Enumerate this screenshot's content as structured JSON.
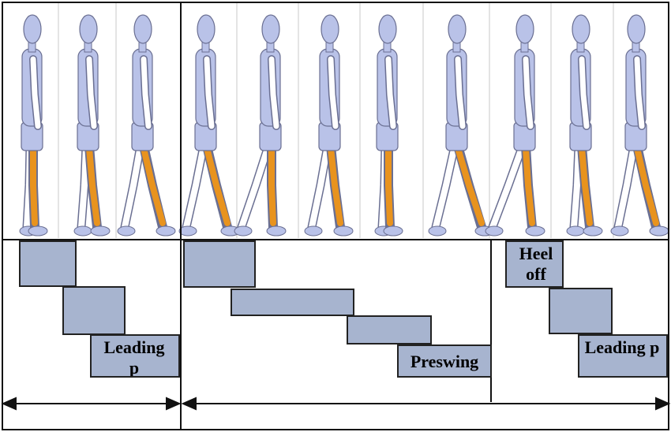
{
  "colors": {
    "figure_fill": "#b9c2e8",
    "figure_stroke": "#6a6f92",
    "leg_highlight": "#e8931e",
    "phase_box": "#a7b4cf",
    "grid_line": "#c8c8c8"
  },
  "figures": [
    {
      "pose": "heel-strike"
    },
    {
      "pose": "loading"
    },
    {
      "pose": "stance-stride"
    },
    {
      "pose": "stride"
    },
    {
      "pose": "swing-back"
    },
    {
      "pose": "mid-swing"
    },
    {
      "pose": "heel-strike"
    },
    {
      "pose": "preswing"
    },
    {
      "pose": "toe-off"
    },
    {
      "pose": "loading"
    },
    {
      "pose": "stance-stride"
    }
  ],
  "phase_boxes": {
    "left_3": "Leading p",
    "middle_4": "Preswing",
    "right_1": "Heel off",
    "right_3": "Leading p"
  }
}
